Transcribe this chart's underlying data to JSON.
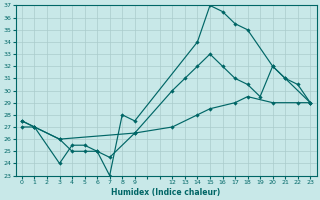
{
  "xlabel": "Humidex (Indice chaleur)",
  "bg_color": "#c8e8e8",
  "line_color": "#006666",
  "grid_color": "#aacccc",
  "xlim": [
    -0.5,
    23.5
  ],
  "ylim": [
    23,
    37
  ],
  "yticks": [
    23,
    24,
    25,
    26,
    27,
    28,
    29,
    30,
    31,
    32,
    33,
    34,
    35,
    36,
    37
  ],
  "xtick_labels": [
    "0",
    "1",
    "2",
    "3",
    "4",
    "5",
    "6",
    "7",
    "8",
    "9",
    "",
    "",
    "12",
    "13",
    "14",
    "15",
    "16",
    "17",
    "18",
    "19",
    "20",
    "21",
    "22",
    "23"
  ],
  "xtick_pos": [
    0,
    1,
    2,
    3,
    4,
    5,
    6,
    7,
    8,
    9,
    10,
    11,
    12,
    13,
    14,
    15,
    16,
    17,
    18,
    19,
    20,
    21,
    22,
    23
  ],
  "line1_x": [
    0,
    1,
    3,
    4,
    5,
    6,
    7,
    8,
    9,
    14,
    15,
    16,
    17,
    18,
    20,
    21,
    23
  ],
  "line1_y": [
    27,
    27,
    24,
    25.5,
    25.5,
    25,
    23,
    28,
    27.5,
    34,
    37,
    36.5,
    35.5,
    35,
    32,
    31,
    29
  ],
  "line2_x": [
    0,
    1,
    3,
    4,
    5,
    6,
    7,
    9,
    12,
    13,
    14,
    15,
    16,
    17,
    18,
    19,
    20,
    21,
    22,
    23
  ],
  "line2_y": [
    27.5,
    27,
    26,
    25,
    25,
    25,
    24.5,
    26.5,
    30,
    31,
    32,
    33,
    32,
    31,
    30.5,
    29.5,
    32,
    31,
    30.5,
    29
  ],
  "line3_x": [
    0,
    1,
    3,
    9,
    12,
    14,
    15,
    17,
    18,
    20,
    22,
    23
  ],
  "line3_y": [
    27.5,
    27,
    26,
    26.5,
    27,
    28,
    28.5,
    29,
    29.5,
    29,
    29,
    29
  ]
}
